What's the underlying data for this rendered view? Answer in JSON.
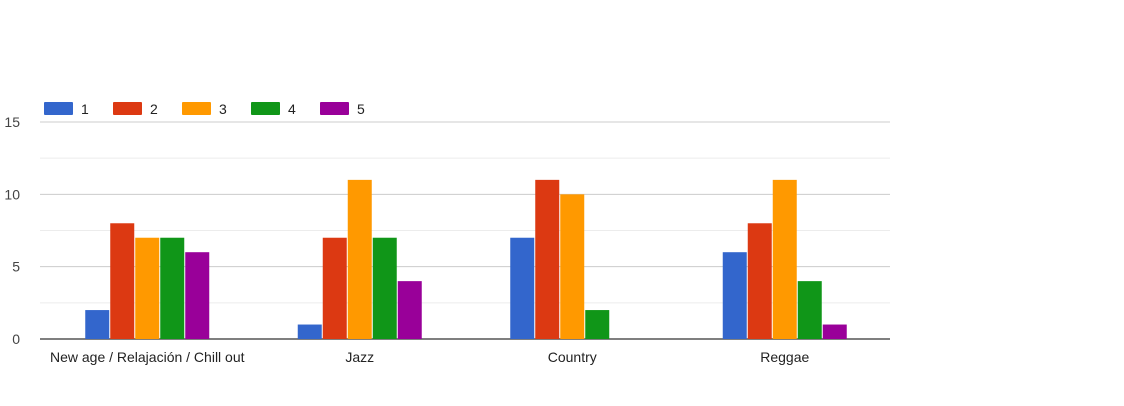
{
  "chart_data": {
    "type": "bar",
    "title": "",
    "xlabel": "",
    "ylabel": "",
    "categories": [
      "New age / Relajación / Chill out",
      "Jazz",
      "Country",
      "Reggae"
    ],
    "series": [
      {
        "name": "1",
        "color": "#3366cc",
        "values": [
          2,
          1,
          7,
          6
        ]
      },
      {
        "name": "2",
        "color": "#dc3912",
        "values": [
          8,
          7,
          11,
          8
        ]
      },
      {
        "name": "3",
        "color": "#ff9900",
        "values": [
          7,
          11,
          10,
          11
        ]
      },
      {
        "name": "4",
        "color": "#109618",
        "values": [
          7,
          7,
          2,
          4
        ]
      },
      {
        "name": "5",
        "color": "#990099",
        "values": [
          6,
          4,
          0,
          1
        ]
      }
    ],
    "ylim": [
      0,
      15
    ],
    "yticks": [
      "0",
      "5",
      "10",
      "15"
    ],
    "minor_gridlines": true,
    "legend_position": "top-left",
    "grid": true
  }
}
